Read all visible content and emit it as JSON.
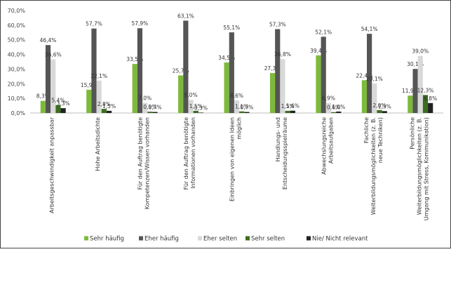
{
  "chart_data": {
    "type": "bar",
    "categories": [
      [
        "Arbeitsgeschwindigkeit anpassbar"
      ],
      [
        "Hohe Arbeitsdichte"
      ],
      [
        "Für den Auftrag benötigte",
        "Kompetenzen/Wissen vorhanden"
      ],
      [
        "Für den Auftrag benötigte",
        "Informationen vorhanden"
      ],
      [
        "Einbringen von eigenen Ideen",
        "möglich"
      ],
      [
        "Handlungs- und",
        "Entscheidungsspielräume"
      ],
      [
        "Abwechslungsreiche",
        "Arbeitsaufgaben"
      ],
      [
        "Fachliche",
        "Weiterbildungsmöglichkeiten (z. B.",
        "neue Techniken)"
      ],
      [
        "Persönliche",
        "Weiterbildungsmöglichkeiten (z. B.",
        "Umgang mit Stress, Kommunikation)"
      ]
    ],
    "series": [
      {
        "name": "Sehr häufig",
        "color": "#7dba3c",
        "values": [
          8.3,
          15.9,
          33.5,
          25.7,
          34.5,
          27.3,
          39.4,
          22.4,
          11.9
        ],
        "labels": [
          "8,3%",
          "15,9%",
          "33,5%",
          "25,7%",
          "34,5%",
          "27,3%",
          "39,4%",
          "22,4%",
          "11,9%"
        ]
      },
      {
        "name": "Eher häufig",
        "color": "#555555",
        "values": [
          46.4,
          57.7,
          57.9,
          63.1,
          55.1,
          57.3,
          52.1,
          54.1,
          30.1
        ],
        "labels": [
          "46,4%",
          "57,7%",
          "57,9%",
          "63,1%",
          "55,1%",
          "57,3%",
          "52,1%",
          "54,1%",
          "30,1%"
        ]
      },
      {
        "name": "Eher selten",
        "color": "#d9d9d9",
        "values": [
          36.6,
          22.1,
          7.0,
          9.0,
          8.6,
          36.8,
          6.9,
          20.1,
          39.0
        ],
        "labels": [
          "36,6%",
          "22,1%",
          "7,0%",
          "9,0%",
          "8,6%",
          "36,8%",
          "6,9%",
          "20,1%",
          "39,0%"
        ]
      },
      {
        "name": "Sehr selten",
        "color": "#3c6e1e",
        "values": [
          5.4,
          2.8,
          0.9,
          1.5,
          1.1,
          1.5,
          0.6,
          2.0,
          12.3
        ],
        "labels": [
          "5,4%",
          "2,8%",
          "0,9%",
          "1,5%",
          "1,1%",
          "1,5%",
          "0,6%",
          "2,0%",
          "12,3%"
        ]
      },
      {
        "name": "Nie/ Nicht relevant",
        "color": "#222222",
        "values": [
          3.3,
          1.5,
          0.7,
          0.3,
          0.7,
          1.6,
          1.0,
          1.3,
          6.8
        ],
        "labels": [
          "3,3%",
          "1,5%",
          "0,7%",
          "0,3%",
          "0,7%",
          "1,6%",
          "1,0%",
          "1,3%",
          "6,8%"
        ]
      }
    ],
    "ylim": [
      0,
      70
    ],
    "yticks": [
      0,
      10,
      20,
      30,
      40,
      50,
      60,
      70
    ],
    "ytick_labels": [
      "0,0%",
      "10,0%",
      "20,0%",
      "30,0%",
      "40,0%",
      "50,0%",
      "60,0%",
      "70,0%"
    ],
    "grid": false,
    "legend_position": "bottom"
  }
}
